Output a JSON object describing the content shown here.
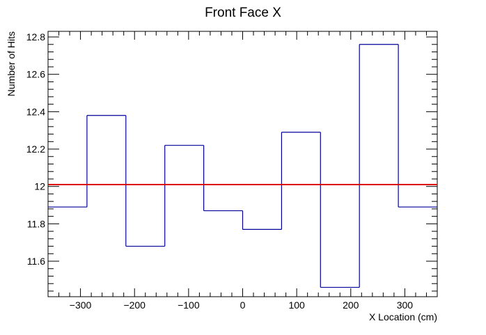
{
  "chart_data": {
    "type": "histogram",
    "title": "Front Face X",
    "xlabel": "X Location (cm)",
    "ylabel": "Number of Hits",
    "xlim": [
      -360,
      360
    ],
    "ylim": [
      11.41,
      12.83
    ],
    "x_ticks": [
      -300,
      -200,
      -100,
      0,
      100,
      200,
      300
    ],
    "x_tick_labels": [
      "−300",
      "−200",
      "−100",
      "0",
      "100",
      "200",
      "300"
    ],
    "y_ticks": [
      11.6,
      11.8,
      12,
      12.2,
      12.4,
      12.6,
      12.8
    ],
    "y_tick_labels": [
      "11.6",
      "11.8",
      "12",
      "12.2",
      "12.4",
      "12.6",
      "12.8"
    ],
    "bin_edges": [
      -360,
      -288,
      -216,
      -144,
      -72,
      0,
      72,
      144,
      216,
      288,
      360
    ],
    "values": [
      11.89,
      12.38,
      11.68,
      12.22,
      11.87,
      11.77,
      12.29,
      11.46,
      12.76,
      11.89
    ],
    "fit_line": {
      "y": 12.01,
      "color": "#dd0000"
    },
    "histogram_color": "#000099",
    "grid": false,
    "legend": "none"
  }
}
